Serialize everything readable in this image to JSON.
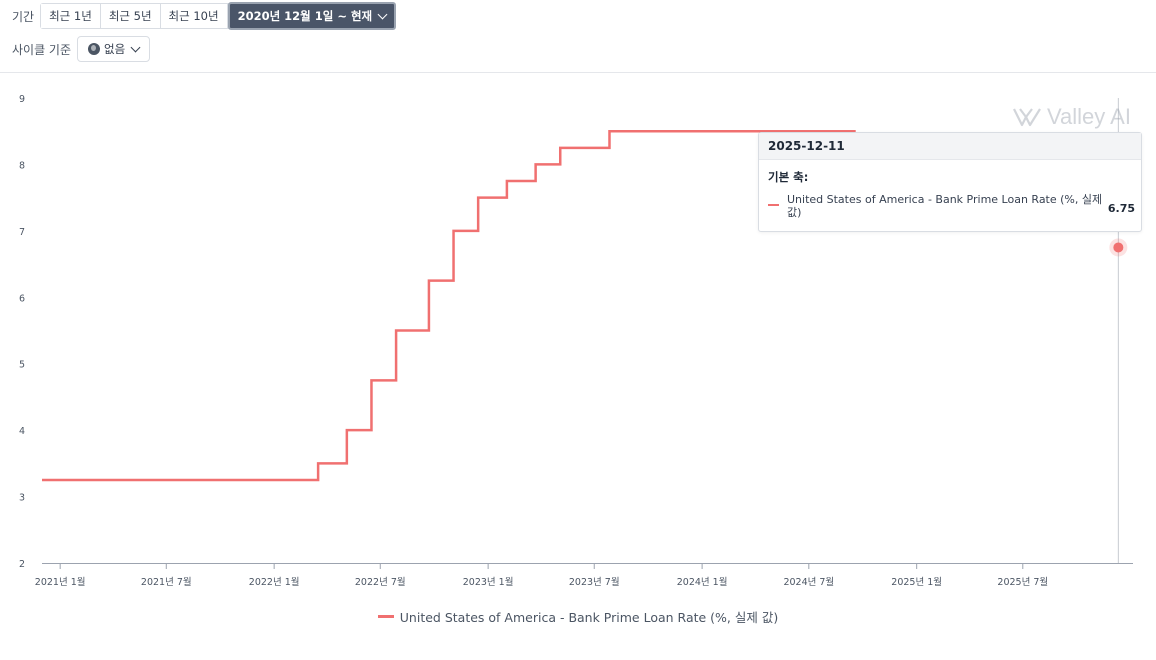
{
  "controls": {
    "period_label": "기간",
    "period_options": [
      "최근 1년",
      "최근 5년",
      "최근 10년"
    ],
    "period_active": "2020년 12월 1일 ~ 현재",
    "cycle_label": "사이클 기준",
    "cycle_value": "없음"
  },
  "tooltip": {
    "date": "2025-12-11",
    "axis_label": "기본 축:",
    "series_name": "United States of America - Bank Prime Loan Rate (%, 실제 값)",
    "value": "6.75"
  },
  "watermark": "Valley AI",
  "colors": {
    "series": "#f07070",
    "active_button": "#4a5568"
  },
  "chart_data": {
    "type": "line",
    "step": true,
    "title": "",
    "xlabel": "",
    "ylabel": "",
    "ylim": [
      2,
      9
    ],
    "yticks": [
      "2",
      "3",
      "4",
      "5",
      "6",
      "7",
      "8",
      "9"
    ],
    "xticks": [
      {
        "date": "2021-01-01",
        "label": "2021년 1월"
      },
      {
        "date": "2021-07-01",
        "label": "2021년 7월"
      },
      {
        "date": "2022-01-01",
        "label": "2022년 1월"
      },
      {
        "date": "2022-07-01",
        "label": "2022년 7월"
      },
      {
        "date": "2023-01-01",
        "label": "2023년 1월"
      },
      {
        "date": "2023-07-01",
        "label": "2023년 7월"
      },
      {
        "date": "2024-01-01",
        "label": "2024년 1월"
      },
      {
        "date": "2024-07-01",
        "label": "2024년 7월"
      },
      {
        "date": "2025-01-01",
        "label": "2025년 1월"
      },
      {
        "date": "2025-07-01",
        "label": "2025년 7월"
      }
    ],
    "xlim": [
      "2020-12-01",
      "2026-01-05"
    ],
    "grid": false,
    "legend": "bottom",
    "series": [
      {
        "name": "United States of America - Bank Prime Loan Rate (%, 실제 값)",
        "color": "#f07070",
        "points": [
          {
            "x": "2020-12-01",
            "y": 3.25
          },
          {
            "x": "2022-03-17",
            "y": 3.5
          },
          {
            "x": "2022-05-05",
            "y": 4.0
          },
          {
            "x": "2022-06-16",
            "y": 4.75
          },
          {
            "x": "2022-07-28",
            "y": 5.5
          },
          {
            "x": "2022-09-22",
            "y": 6.25
          },
          {
            "x": "2022-11-03",
            "y": 7.0
          },
          {
            "x": "2022-12-15",
            "y": 7.5
          },
          {
            "x": "2023-02-02",
            "y": 7.75
          },
          {
            "x": "2023-03-23",
            "y": 8.0
          },
          {
            "x": "2023-05-04",
            "y": 8.25
          },
          {
            "x": "2023-07-27",
            "y": 8.5
          },
          {
            "x": "2024-09-19",
            "y": 8.5
          }
        ],
        "hidden_until": "2025-12-05",
        "last_point": {
          "x": "2025-12-11",
          "y": 6.75
        }
      }
    ]
  }
}
